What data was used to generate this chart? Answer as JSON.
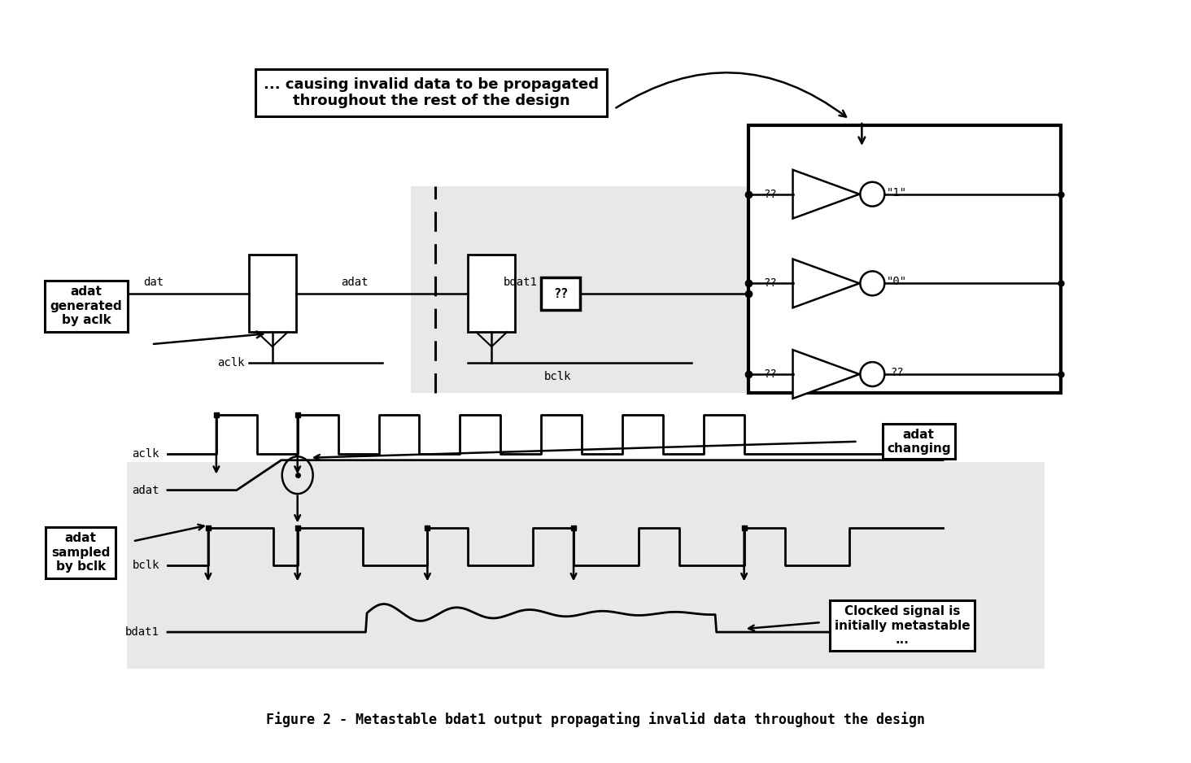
{
  "title": "Figure 2 - Metastable bdat1 output propagating invalid data throughout the design",
  "bg_color": "#ffffff",
  "gray_bg": "#e8e8e8",
  "box_text_propagate": "... causing invalid data to be propagated\nthroughout the rest of the design",
  "label_adat_gen": "adat\ngenerated\nby aclk",
  "label_adat_sampled": "adat\nsampled\nby bclk",
  "label_adat_changing": "adat\nchanging",
  "label_clocked": "Clocked signal is\ninitially metastable\n...",
  "label_dat": "dat",
  "label_adat": "adat",
  "label_aclk": "aclk",
  "label_bclk": "bclk",
  "label_bdat1": "bdat1",
  "label_bdat1_box": "??",
  "ff_labels": [
    "??",
    "\"1\"",
    "??",
    "\"0\"",
    "??",
    "??"
  ]
}
